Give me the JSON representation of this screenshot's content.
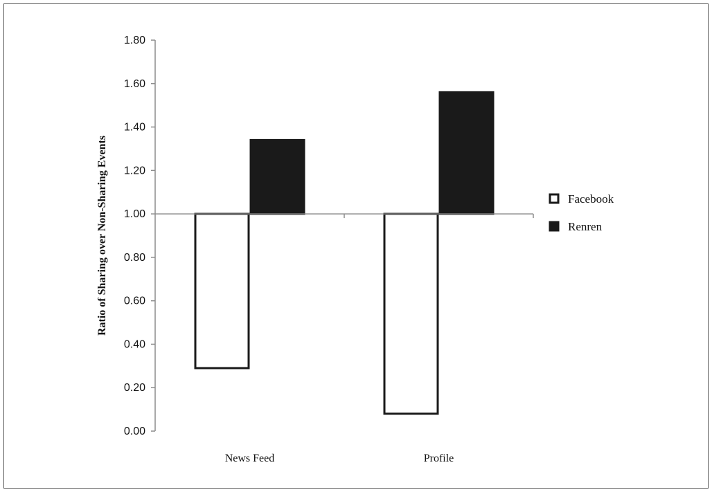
{
  "chart_data": {
    "type": "bar",
    "title": "",
    "xlabel": "",
    "ylabel": "Ratio of Sharing over Non-Sharing Events",
    "categories": [
      "News Feed",
      "Profile"
    ],
    "ylim": [
      0,
      1.8
    ],
    "yticks": [
      "0.00",
      "0.20",
      "0.40",
      "0.60",
      "0.80",
      "1.00",
      "1.20",
      "1.40",
      "1.60",
      "1.80"
    ],
    "baseline": 1.0,
    "grid": false,
    "legend_position": "right",
    "series": [
      {
        "name": "Facebook",
        "values": [
          0.29,
          0.08
        ],
        "fill": "#ffffff",
        "stroke": "#1a1a1a"
      },
      {
        "name": "Renren",
        "values": [
          1.34,
          1.56
        ],
        "fill": "#1a1a1a",
        "stroke": "#1a1a1a"
      }
    ]
  }
}
